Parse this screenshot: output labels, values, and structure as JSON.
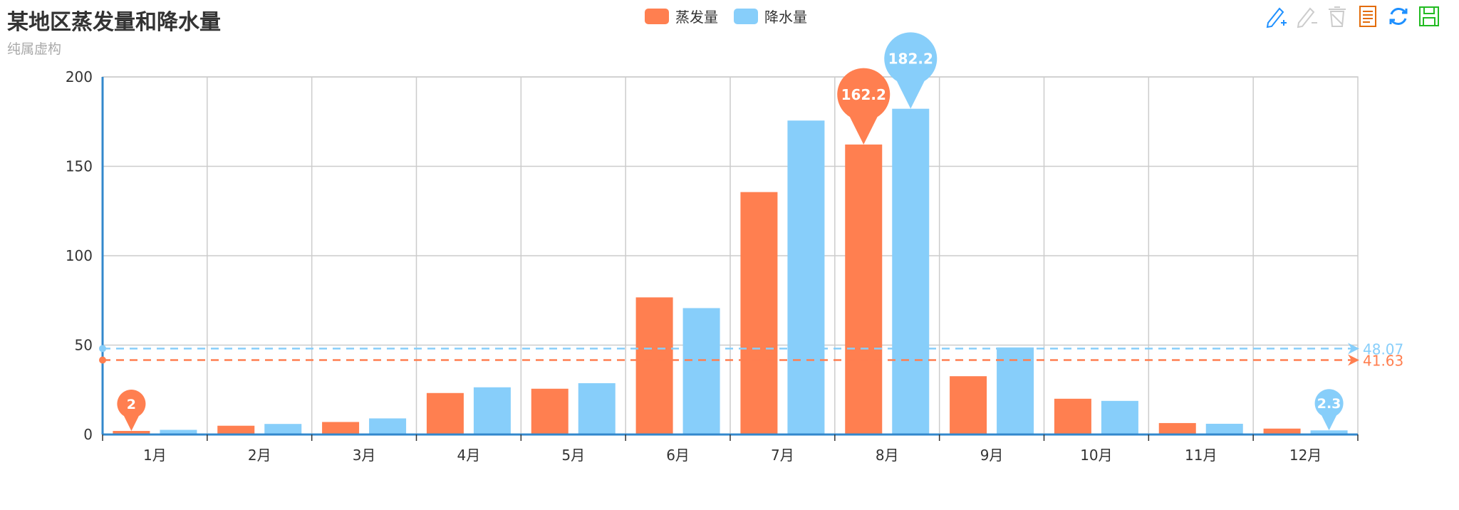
{
  "chart_data": {
    "type": "bar",
    "title": "某地区蒸发量和降水量",
    "subtitle": "纯属虚构",
    "categories": [
      "1月",
      "2月",
      "3月",
      "4月",
      "5月",
      "6月",
      "7月",
      "8月",
      "9月",
      "10月",
      "11月",
      "12月"
    ],
    "series": [
      {
        "name": "蒸发量",
        "color": "#ff7f50",
        "values": [
          2.0,
          4.9,
          7.0,
          23.2,
          25.6,
          76.7,
          135.6,
          162.2,
          32.6,
          20.0,
          6.4,
          3.3
        ],
        "mark_points": [
          {
            "category": "8月",
            "value": 162.2,
            "label": "162.2"
          },
          {
            "category": "1月",
            "value": 2.0,
            "label": "2"
          }
        ],
        "mark_line": {
          "type": "average",
          "value": 41.63,
          "label": "41.63"
        }
      },
      {
        "name": "降水量",
        "color": "#87cefa",
        "values": [
          2.6,
          5.9,
          9.0,
          26.4,
          28.7,
          70.7,
          175.6,
          182.2,
          48.7,
          18.8,
          6.0,
          2.3
        ],
        "mark_points": [
          {
            "category": "8月",
            "value": 182.2,
            "label": "182.2"
          },
          {
            "category": "12月",
            "value": 2.3,
            "label": "2.3"
          }
        ],
        "mark_line": {
          "type": "average",
          "value": 48.07,
          "label": "48.07"
        }
      }
    ],
    "ylim": [
      0,
      200
    ],
    "yticks": [
      0,
      50,
      100,
      150,
      200
    ],
    "xlabel": "",
    "ylabel": "",
    "grid": true,
    "legend_position": "top-center"
  },
  "toolbox": {
    "items": [
      {
        "name": "mark-icon",
        "color": "#1e90ff"
      },
      {
        "name": "mark-undo-icon",
        "color": "#cccccc"
      },
      {
        "name": "mark-clear-icon",
        "color": "#cccccc"
      },
      {
        "name": "data-view-icon",
        "color": "#e36c0a"
      },
      {
        "name": "refresh-icon",
        "color": "#1e90ff"
      },
      {
        "name": "save-image-icon",
        "color": "#22bb22"
      }
    ]
  }
}
